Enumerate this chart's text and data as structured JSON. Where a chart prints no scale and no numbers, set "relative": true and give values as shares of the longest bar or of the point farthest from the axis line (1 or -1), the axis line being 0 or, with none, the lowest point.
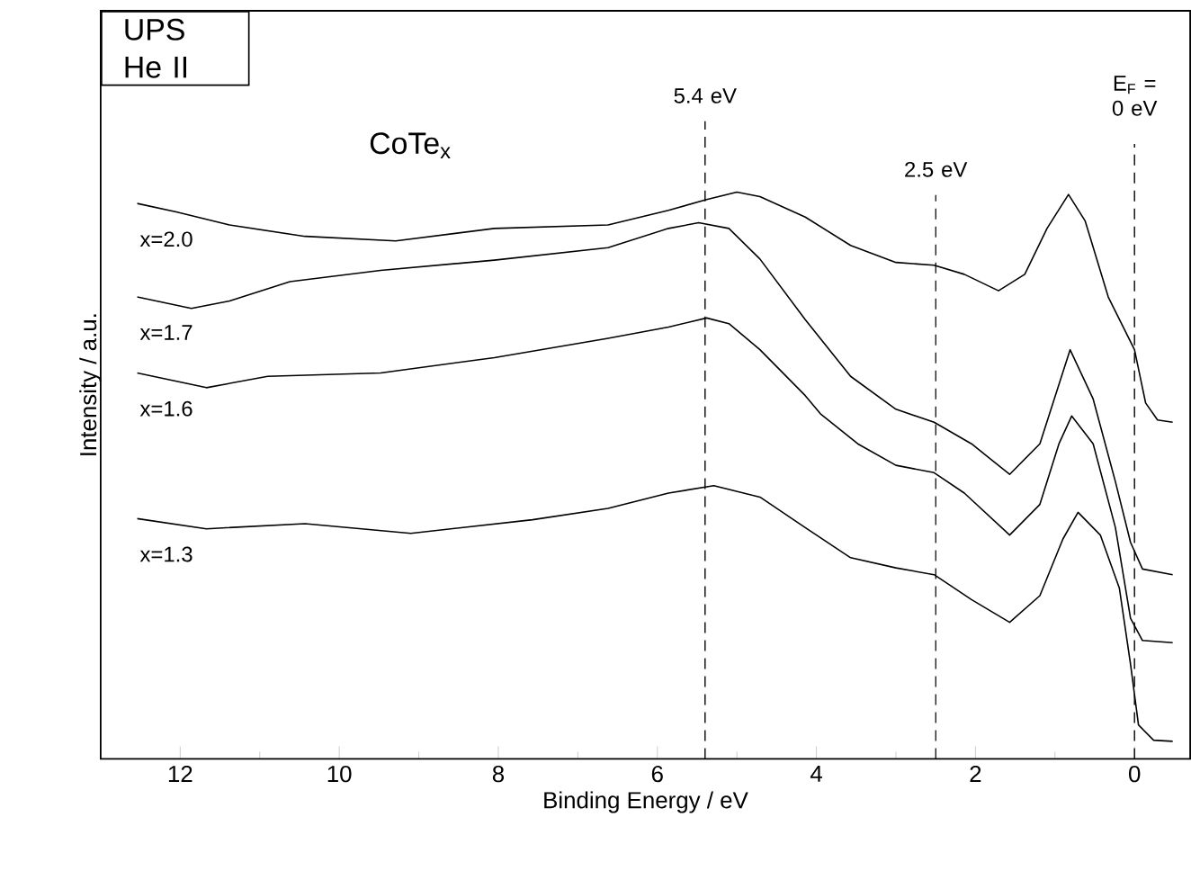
{
  "chart_data": {
    "type": "line",
    "xlabel": "Binding Energy / eV",
    "ylabel": "Intensity / a.u.",
    "relative": true,
    "annotations": [
      "UPS He II",
      "CoTe$_{x}$"
    ],
    "xlim": [
      13,
      -0.7
    ],
    "xticks": [
      12,
      10,
      8,
      6,
      4,
      2,
      0
    ],
    "ref_lines": [
      {
        "axis": "x",
        "value": 5.4,
        "label": "5.4 eV",
        "line_style": "dashed",
        "color": "#000000"
      },
      {
        "axis": "x",
        "value": 2.5,
        "label": "2.5 eV",
        "line_style": "dashed",
        "color": "#000000"
      },
      {
        "axis": "x",
        "value": 0,
        "label": "E$_{F}$ = 0 eV",
        "line_style": "dashed",
        "color": "#000000"
      }
    ],
    "series": [
      {
        "name": "x=2.0",
        "color": "#000000",
        "x": [
          12.54,
          12.05,
          11.38,
          10.43,
          9.29,
          8.05,
          6.62,
          5.86,
          5.38,
          5.0,
          4.71,
          4.14,
          3.57,
          3.0,
          2.52,
          2.14,
          1.71,
          1.38,
          1.1,
          0.83,
          0.62,
          0.33,
          0,
          -0.14,
          -0.29,
          -0.48
        ],
        "values": [
          0.98,
          0.965,
          0.942,
          0.922,
          0.914,
          0.936,
          0.942,
          0.968,
          0.987,
          1.0,
          0.992,
          0.956,
          0.906,
          0.876,
          0.871,
          0.855,
          0.826,
          0.855,
          0.936,
          0.996,
          0.949,
          0.815,
          0.722,
          0.628,
          0.598,
          0.594
        ]
      },
      {
        "name": "x=1.7",
        "color": "#000000",
        "x": [
          12.54,
          11.86,
          11.38,
          10.62,
          9.48,
          8.05,
          6.62,
          5.86,
          5.48,
          5.1,
          4.71,
          4.14,
          3.57,
          3.0,
          2.52,
          2.05,
          1.57,
          1.19,
          0.81,
          0.52,
          0.24,
          0.05,
          -0.1,
          -0.48
        ],
        "values": [
          0.815,
          0.795,
          0.808,
          0.842,
          0.862,
          0.88,
          0.902,
          0.936,
          0.946,
          0.936,
          0.882,
          0.775,
          0.675,
          0.617,
          0.594,
          0.556,
          0.502,
          0.556,
          0.722,
          0.635,
          0.489,
          0.382,
          0.335,
          0.325
        ]
      },
      {
        "name": "x=1.6",
        "color": "#000000",
        "x": [
          12.54,
          11.67,
          10.9,
          9.48,
          8.05,
          6.62,
          5.86,
          5.38,
          5.1,
          4.71,
          4.14,
          3.95,
          3.48,
          3.0,
          2.52,
          2.14,
          1.57,
          1.19,
          0.95,
          0.79,
          0.52,
          0.24,
          0.05,
          -0.1,
          -0.48
        ],
        "values": [
          0.681,
          0.655,
          0.675,
          0.681,
          0.708,
          0.742,
          0.762,
          0.778,
          0.768,
          0.722,
          0.641,
          0.609,
          0.556,
          0.518,
          0.505,
          0.469,
          0.395,
          0.449,
          0.556,
          0.605,
          0.556,
          0.408,
          0.248,
          0.209,
          0.205
        ]
      },
      {
        "name": "x=1.3",
        "color": "#000000",
        "x": [
          12.54,
          11.67,
          10.43,
          9.1,
          7.57,
          6.62,
          5.86,
          5.29,
          4.71,
          4.14,
          3.57,
          3.0,
          2.52,
          2.05,
          1.57,
          1.19,
          0.9,
          0.71,
          0.43,
          0.19,
          0.05,
          -0.05,
          -0.24,
          -0.48
        ],
        "values": [
          0.424,
          0.406,
          0.415,
          0.398,
          0.422,
          0.442,
          0.469,
          0.482,
          0.462,
          0.408,
          0.355,
          0.337,
          0.325,
          0.281,
          0.241,
          0.288,
          0.388,
          0.435,
          0.395,
          0.301,
          0.167,
          0.06,
          0.033,
          0.031
        ]
      }
    ]
  }
}
